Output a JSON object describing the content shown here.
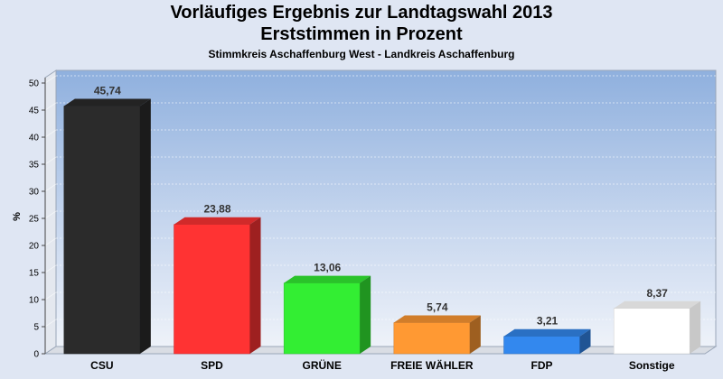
{
  "header": {
    "title_line1": "Vorläufiges Ergebnis zur Landtagswahl 2013",
    "title_line2": "Erststimmen in Prozent",
    "subtitle": "Stimmkreis Aschaffenburg West - Landkreis Aschaffenburg"
  },
  "chart_data": {
    "type": "bar",
    "title": "Vorläufiges Ergebnis zur Landtagswahl 2013 Erststimmen in Prozent",
    "subtitle": "Stimmkreis Aschaffenburg West - Landkreis Aschaffenburg",
    "ylabel": "%",
    "xlabel": "",
    "ylim": [
      0,
      50
    ],
    "yticks": [
      0,
      5,
      10,
      15,
      20,
      25,
      30,
      35,
      40,
      45,
      50
    ],
    "grid": true,
    "categories": [
      "CSU",
      "SPD",
      "GRÜNE",
      "FREIE WÄHLER",
      "FDP",
      "Sonstige"
    ],
    "values": [
      45.74,
      23.88,
      13.06,
      5.74,
      3.21,
      8.37
    ],
    "value_labels": [
      "45,74",
      "23,88",
      "13,06",
      "5,74",
      "3,21",
      "8,37"
    ],
    "colors": [
      "#2b2b2b",
      "#ff3333",
      "#33ee33",
      "#ff9933",
      "#3388ee",
      "#ffffff"
    ]
  }
}
